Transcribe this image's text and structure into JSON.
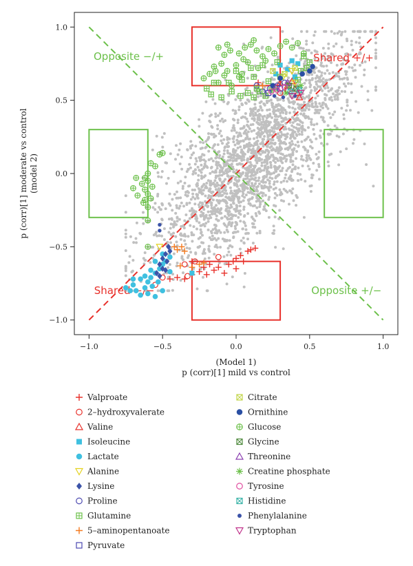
{
  "chart_data": {
    "type": "scatter",
    "title": "",
    "xlabel_lines": [
      "(Model 1)",
      "p (corr)[1] mild vs control"
    ],
    "ylabel_lines": [
      "p (corr)[1] moderate vs control",
      "(model 2)"
    ],
    "xlim": [
      -1.1,
      1.1
    ],
    "ylim": [
      -1.1,
      1.1
    ],
    "xticks": [
      -1.0,
      -0.5,
      0.0,
      0.5,
      1.0
    ],
    "yticks": [
      -1.0,
      -0.5,
      0.0,
      0.5,
      1.0
    ],
    "tick_labels": [
      "−1.0",
      "−0.5",
      "0.0",
      "0.5",
      "1.0"
    ],
    "grid": false,
    "legend_position": "below",
    "reference_lines": [
      {
        "name": "shared-diagonal",
        "from": [
          -1.0,
          -1.0
        ],
        "to": [
          1.0,
          1.0
        ],
        "color": "#e8302a",
        "dashed": true
      },
      {
        "name": "opposite-diagonal",
        "from": [
          -1.0,
          1.0
        ],
        "to": [
          1.0,
          -1.0
        ],
        "color": "#6cc04a",
        "dashed": true
      }
    ],
    "regions": [
      {
        "name": "shared-pos",
        "label": "Shared +/+",
        "x": [
          -0.3,
          0.3
        ],
        "y": [
          0.6,
          1.0
        ],
        "color": "#e8302a",
        "label_at": [
          0.73,
          0.79
        ]
      },
      {
        "name": "shared-neg",
        "label": "Shared −/−",
        "x": [
          -0.3,
          0.3
        ],
        "y": [
          -1.0,
          -0.6
        ],
        "color": "#e8302a",
        "label_at": [
          -0.76,
          -0.8
        ]
      },
      {
        "name": "opposite-neg-pos",
        "label": "Opposite −/+",
        "x": [
          -1.0,
          -0.6
        ],
        "y": [
          -0.3,
          0.3
        ],
        "color": "#6cc04a",
        "label_at": [
          -0.73,
          0.8
        ]
      },
      {
        "name": "opposite-pos-neg",
        "label": "Opposite +/−",
        "x": [
          0.6,
          1.0
        ],
        "y": [
          -0.3,
          0.3
        ],
        "color": "#6cc04a",
        "label_at": [
          0.75,
          -0.8
        ]
      }
    ],
    "background_points": {
      "color": "#c0c0c0",
      "description_count": 2400
    },
    "series": [
      {
        "name": "Valproate",
        "marker": "plus",
        "color": "#e8302a",
        "points": [
          [
            -0.45,
            -0.72
          ],
          [
            -0.4,
            -0.71
          ],
          [
            -0.35,
            -0.72
          ],
          [
            -0.3,
            -0.69
          ],
          [
            -0.25,
            -0.67
          ],
          [
            -0.2,
            -0.69
          ],
          [
            -0.15,
            -0.66
          ],
          [
            -0.12,
            -0.64
          ],
          [
            -0.08,
            -0.68
          ],
          [
            -0.05,
            -0.62
          ],
          [
            -0.02,
            -0.6
          ],
          [
            0.0,
            -0.58
          ],
          [
            0.03,
            -0.56
          ],
          [
            0.05,
            -0.6
          ],
          [
            0.08,
            -0.53
          ],
          [
            0.1,
            -0.52
          ],
          [
            0.13,
            -0.51
          ],
          [
            -0.18,
            -0.62
          ],
          [
            -0.22,
            -0.64
          ],
          [
            -0.3,
            -0.6
          ],
          [
            0.15,
            0.62
          ],
          [
            0.0,
            -0.65
          ]
        ]
      },
      {
        "name": "2–hydroxyvalerate",
        "marker": "circle-open",
        "color": "#e8302a",
        "points": [
          [
            -0.35,
            -0.62
          ],
          [
            -0.28,
            -0.6
          ],
          [
            -0.33,
            -0.7
          ],
          [
            -0.12,
            -0.57
          ],
          [
            -0.5,
            -0.71
          ],
          [
            -0.55,
            -0.76
          ],
          [
            0.3,
            0.55
          ],
          [
            0.35,
            0.57
          ]
        ]
      },
      {
        "name": "Valine",
        "marker": "triangle-open",
        "color": "#e8302a",
        "points": [
          [
            0.3,
            0.62
          ],
          [
            0.35,
            0.6
          ],
          [
            0.4,
            0.58
          ],
          [
            0.42,
            0.55
          ],
          [
            0.38,
            0.63
          ],
          [
            0.43,
            0.52
          ]
        ]
      },
      {
        "name": "Isoleucine",
        "marker": "square-filled",
        "color": "#3fc0e0",
        "points": [
          [
            0.27,
            0.68
          ],
          [
            0.3,
            0.74
          ],
          [
            0.35,
            0.71
          ],
          [
            0.4,
            0.66
          ],
          [
            0.42,
            0.75
          ],
          [
            0.38,
            0.77
          ],
          [
            -0.3,
            -0.68
          ]
        ]
      },
      {
        "name": "Lactate",
        "marker": "circle-filled",
        "color": "#3fc0e0",
        "points": [
          [
            -0.75,
            -0.78
          ],
          [
            -0.72,
            -0.8
          ],
          [
            -0.7,
            -0.76
          ],
          [
            -0.68,
            -0.8
          ],
          [
            -0.65,
            -0.83
          ],
          [
            -0.62,
            -0.78
          ],
          [
            -0.6,
            -0.74
          ],
          [
            -0.58,
            -0.71
          ],
          [
            -0.55,
            -0.68
          ],
          [
            -0.52,
            -0.65
          ],
          [
            -0.5,
            -0.62
          ],
          [
            -0.48,
            -0.6
          ],
          [
            -0.45,
            -0.57
          ],
          [
            -0.6,
            -0.82
          ],
          [
            -0.57,
            -0.77
          ],
          [
            -0.53,
            -0.74
          ],
          [
            -0.5,
            -0.8
          ],
          [
            -0.55,
            -0.84
          ],
          [
            -0.62,
            -0.7
          ],
          [
            -0.58,
            -0.66
          ],
          [
            -0.65,
            -0.72
          ],
          [
            -0.7,
            -0.72
          ],
          [
            -0.45,
            -0.67
          ],
          [
            -0.5,
            -0.55
          ],
          [
            -0.55,
            -0.6
          ]
        ]
      },
      {
        "name": "Alanine",
        "marker": "triangle-down-open",
        "color": "#e4d21e",
        "points": [
          [
            0.32,
            0.66
          ],
          [
            0.38,
            0.7
          ],
          [
            0.4,
            0.62
          ],
          [
            -0.52,
            -0.5
          ]
        ]
      },
      {
        "name": "Lysine",
        "marker": "diamond-filled",
        "color": "#3b53a8",
        "points": [
          [
            -0.52,
            -0.62
          ],
          [
            -0.5,
            -0.58
          ],
          [
            -0.48,
            -0.55
          ],
          [
            -0.47,
            -0.6
          ],
          [
            -0.45,
            -0.53
          ],
          [
            -0.46,
            -0.5
          ],
          [
            -0.5,
            -0.65
          ],
          [
            -0.52,
            -0.7
          ],
          [
            -0.54,
            -0.68
          ],
          [
            -0.48,
            -0.66
          ]
        ]
      },
      {
        "name": "Proline",
        "marker": "circle-open",
        "color": "#4b48b0",
        "points": [
          [
            0.18,
            0.56
          ],
          [
            0.23,
            0.58
          ],
          [
            0.28,
            0.6
          ],
          [
            0.33,
            0.62
          ],
          [
            0.14,
            0.6
          ]
        ]
      },
      {
        "name": "Glutamine",
        "marker": "square-plus",
        "color": "#6cc04a",
        "points": [
          [
            -0.17,
            0.54
          ],
          [
            -0.1,
            0.52
          ],
          [
            -0.03,
            0.56
          ],
          [
            0.03,
            0.53
          ],
          [
            0.08,
            0.55
          ],
          [
            0.12,
            0.52
          ],
          [
            0.16,
            0.56
          ],
          [
            0.2,
            0.53
          ],
          [
            0.24,
            0.57
          ],
          [
            -0.05,
            0.62
          ],
          [
            0.04,
            0.64
          ],
          [
            0.12,
            0.66
          ],
          [
            0.22,
            0.63
          ],
          [
            0.3,
            0.66
          ],
          [
            0.36,
            0.6
          ],
          [
            0.42,
            0.64
          ],
          [
            0.48,
            0.72
          ],
          [
            0.5,
            0.76
          ],
          [
            0.46,
            0.8
          ],
          [
            0.44,
            0.7
          ],
          [
            -0.15,
            0.62
          ],
          [
            0.0,
            0.7
          ],
          [
            0.1,
            0.72
          ],
          [
            0.18,
            0.74
          ],
          [
            0.28,
            0.76
          ],
          [
            -0.2,
            0.58
          ],
          [
            0.26,
            0.58
          ],
          [
            0.14,
            0.58
          ]
        ]
      },
      {
        "name": "5–aminopentanoate",
        "marker": "plus",
        "color": "#f47b20",
        "points": [
          [
            -0.4,
            -0.52
          ],
          [
            -0.37,
            -0.5
          ],
          [
            -0.35,
            -0.53
          ],
          [
            -0.38,
            -0.63
          ],
          [
            -0.3,
            -0.64
          ],
          [
            -0.42,
            -0.5
          ],
          [
            -0.25,
            -0.62
          ],
          [
            -0.22,
            -0.61
          ],
          [
            0.18,
            0.6
          ]
        ]
      },
      {
        "name": "Pyruvate",
        "marker": "square-open",
        "color": "#4b48b0",
        "points": [
          [
            0.22,
            0.55
          ],
          [
            0.3,
            0.58
          ]
        ]
      },
      {
        "name": "Citrate",
        "marker": "square-x",
        "color": "#c2d64a",
        "points": [
          [
            0.25,
            0.7
          ],
          [
            0.33,
            0.68
          ],
          [
            0.4,
            0.72
          ]
        ]
      },
      {
        "name": "Ornithine",
        "marker": "circle-filled",
        "color": "#2a4fa3",
        "points": [
          [
            0.52,
            0.73
          ],
          [
            0.5,
            0.7
          ],
          [
            0.25,
            0.6
          ],
          [
            0.3,
            0.65
          ],
          [
            0.45,
            0.68
          ]
        ]
      },
      {
        "name": "Glucose",
        "marker": "circle-plus",
        "color": "#6cc04a",
        "points": [
          [
            -0.12,
            0.86
          ],
          [
            -0.08,
            0.81
          ],
          [
            -0.04,
            0.84
          ],
          [
            0.02,
            0.82
          ],
          [
            0.06,
            0.86
          ],
          [
            0.1,
            0.88
          ],
          [
            0.14,
            0.84
          ],
          [
            0.18,
            0.8
          ],
          [
            0.22,
            0.85
          ],
          [
            0.26,
            0.82
          ],
          [
            0.3,
            0.87
          ],
          [
            0.34,
            0.9
          ],
          [
            0.38,
            0.86
          ],
          [
            0.42,
            0.89
          ],
          [
            0.12,
            0.91
          ],
          [
            -0.06,
            0.88
          ],
          [
            0.05,
            0.78
          ],
          [
            -0.15,
            0.73
          ],
          [
            -0.1,
            0.75
          ],
          [
            0.0,
            0.74
          ],
          [
            0.08,
            0.76
          ],
          [
            0.15,
            0.72
          ],
          [
            -0.18,
            0.68
          ],
          [
            -0.08,
            0.67
          ],
          [
            0.04,
            0.68
          ],
          [
            -0.22,
            0.65
          ],
          [
            -0.12,
            0.62
          ],
          [
            -0.03,
            0.6
          ],
          [
            -0.14,
            0.7
          ],
          [
            -0.06,
            0.7
          ],
          [
            0.02,
            0.66
          ],
          [
            -0.58,
            0.07
          ],
          [
            -0.6,
            0.0
          ],
          [
            -0.62,
            -0.03
          ],
          [
            -0.64,
            -0.07
          ],
          [
            -0.62,
            -0.11
          ],
          [
            -0.6,
            -0.14
          ],
          [
            -0.58,
            -0.17
          ],
          [
            -0.63,
            -0.2
          ],
          [
            -0.6,
            -0.23
          ],
          [
            -0.62,
            -0.18
          ],
          [
            -0.67,
            -0.15
          ],
          [
            -0.7,
            -0.1
          ],
          [
            -0.68,
            -0.03
          ],
          [
            -0.6,
            -0.05
          ],
          [
            -0.57,
            -0.09
          ],
          [
            -0.55,
            0.05
          ],
          [
            -0.52,
            0.13
          ],
          [
            -0.5,
            0.14
          ],
          [
            -0.6,
            -0.32
          ],
          [
            -0.6,
            -0.5
          ],
          [
            0.46,
            0.82
          ],
          [
            0.2,
            0.77
          ]
        ]
      },
      {
        "name": "Glycine",
        "marker": "square-x",
        "color": "#4f8a3e",
        "points": [
          [
            0.36,
            0.6
          ],
          [
            0.41,
            0.58
          ]
        ]
      },
      {
        "name": "Threonine",
        "marker": "triangle-open",
        "color": "#8a3db0",
        "points": [
          [
            0.35,
            0.62
          ],
          [
            0.27,
            0.59
          ]
        ]
      },
      {
        "name": "Creatine phosphate",
        "marker": "asterisk",
        "color": "#6cc04a",
        "points": [
          [
            0.34,
            0.55
          ],
          [
            0.44,
            0.6
          ]
        ]
      },
      {
        "name": "Tyrosine",
        "marker": "circle-open",
        "color": "#e0499e",
        "points": [
          [
            0.28,
            0.57
          ],
          [
            0.33,
            0.59
          ],
          [
            0.24,
            0.56
          ]
        ]
      },
      {
        "name": "Histidine",
        "marker": "square-x",
        "color": "#3ab3a8",
        "points": [
          [
            0.37,
            0.56
          ],
          [
            0.43,
            0.57
          ]
        ]
      },
      {
        "name": "Phenylalanine",
        "marker": "dot",
        "color": "#3b53a8",
        "points": [
          [
            0.26,
            0.53
          ],
          [
            0.32,
            0.52
          ],
          [
            0.4,
            0.53
          ],
          [
            -0.52,
            -0.35
          ],
          [
            -0.52,
            -0.39
          ]
        ]
      },
      {
        "name": "Tryptophan",
        "marker": "triangle-down-open",
        "color": "#c0308a",
        "points": [
          [
            0.38,
            0.53
          ],
          [
            0.44,
            0.55
          ]
        ]
      }
    ]
  }
}
